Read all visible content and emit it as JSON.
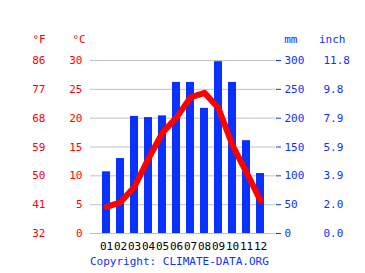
{
  "chart_data": {
    "type": "bar",
    "categories": [
      "01",
      "02",
      "03",
      "04",
      "05",
      "06",
      "07",
      "08",
      "09",
      "10",
      "11",
      "12"
    ],
    "y_label": "°C",
    "y_fahrenheit_label": "°F",
    "y2_label": "mm",
    "y2_inch_label": "inch",
    "caption": "Copyright: CLIMATE-DATA.ORG",
    "ylim": [
      0,
      30
    ],
    "yticks": [
      0,
      5,
      10,
      15,
      20,
      25,
      30
    ],
    "y_fahrenheit_ticks": [
      {
        "value": 0,
        "label": "32"
      },
      {
        "value": 5,
        "label": "41"
      },
      {
        "value": 10,
        "label": "50"
      },
      {
        "value": 15,
        "label": "59"
      },
      {
        "value": 20,
        "label": "68"
      },
      {
        "value": 25,
        "label": "77"
      },
      {
        "value": 30,
        "label": "86"
      }
    ],
    "y2lim": [
      0,
      300
    ],
    "y2ticks": [
      0,
      50,
      100,
      150,
      200,
      250,
      300
    ],
    "y2_inch_ticks": [
      {
        "value": 0,
        "label": "0.0"
      },
      {
        "value": 50,
        "label": "2.0"
      },
      {
        "value": 100,
        "label": "3.9"
      },
      {
        "value": 150,
        "label": "5.9"
      },
      {
        "value": 200,
        "label": "7.9"
      },
      {
        "value": 250,
        "label": "9.8"
      },
      {
        "value": 300,
        "label": "11.8"
      }
    ],
    "grid": true,
    "series": [
      {
        "type": "bar",
        "axis": "y2",
        "color": "#0a32ff",
        "values": [
          107,
          130,
          203,
          201,
          204,
          262,
          262,
          217,
          298,
          262,
          161,
          104
        ]
      },
      {
        "type": "line",
        "axis": "y",
        "color": "#ff0000",
        "values": [
          4.6,
          5.4,
          8.1,
          13.0,
          17.5,
          20.1,
          23.6,
          24.4,
          21.7,
          15.3,
          10.6,
          5.7
        ]
      }
    ]
  }
}
